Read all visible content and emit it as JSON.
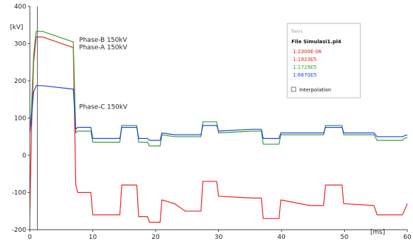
{
  "chart_data": {
    "type": "line",
    "title": "",
    "xlabel": "[ms]",
    "ylabel": "[kV]",
    "xlim": [
      0,
      60
    ],
    "ylim": [
      -200,
      400
    ],
    "x_ticks": [
      0,
      10,
      20,
      30,
      40,
      50,
      60
    ],
    "y_ticks": [
      -200,
      -100,
      0,
      100,
      200,
      300,
      400
    ],
    "grid": false,
    "legend_position": "top-right",
    "legend": {
      "header": "Basis",
      "file": "File Simulasi1.pl4",
      "entries": [
        "1:2300E-06",
        "1:1923E5",
        "1:1729E5",
        "1:6670E5"
      ],
      "interpolation_label": "Interpolation"
    },
    "annotations": [
      {
        "text": "Phase-B 150kV",
        "x": 7.5,
        "y": 305
      },
      {
        "text": "Phase-A 150kV",
        "x": 7.5,
        "y": 285
      },
      {
        "text": "Phase-C 150kV",
        "x": 7.5,
        "y": 125
      }
    ],
    "series": [
      {
        "color": "#ee2222",
        "points": [
          [
            0,
            -160
          ],
          [
            0.25,
            60
          ],
          [
            0.6,
            250
          ],
          [
            1.0,
            318
          ],
          [
            2.0,
            318
          ],
          [
            6.8,
            290
          ],
          [
            6.9,
            290
          ],
          [
            7.3,
            -80
          ],
          [
            7.6,
            -100
          ],
          [
            9.7,
            -100
          ],
          [
            10,
            -160
          ],
          [
            14.3,
            -160
          ],
          [
            14.6,
            -80
          ],
          [
            17,
            -80
          ],
          [
            17.3,
            -165
          ],
          [
            18.7,
            -165
          ],
          [
            19,
            -180
          ],
          [
            20.7,
            -180
          ],
          [
            21,
            -120
          ],
          [
            23,
            -130
          ],
          [
            24.7,
            -150
          ],
          [
            27.2,
            -150
          ],
          [
            27.5,
            -70
          ],
          [
            29.7,
            -70
          ],
          [
            30,
            -110
          ],
          [
            35.5,
            -115
          ],
          [
            36.8,
            -115
          ],
          [
            37.1,
            -170
          ],
          [
            39.6,
            -170
          ],
          [
            39.9,
            -120
          ],
          [
            44.5,
            -135
          ],
          [
            46.7,
            -135
          ],
          [
            47,
            -80
          ],
          [
            49.6,
            -80
          ],
          [
            49.9,
            -130
          ],
          [
            54.7,
            -135
          ],
          [
            55.2,
            -160
          ],
          [
            59.2,
            -160
          ],
          [
            59.5,
            -150
          ],
          [
            60,
            -130
          ]
        ]
      },
      {
        "color": "#33a033",
        "points": [
          [
            0,
            60
          ],
          [
            0.25,
            120
          ],
          [
            0.6,
            270
          ],
          [
            1.0,
            333
          ],
          [
            2.0,
            333
          ],
          [
            6.8,
            305
          ],
          [
            6.9,
            305
          ],
          [
            7.3,
            60
          ],
          [
            7.6,
            65
          ],
          [
            9.7,
            65
          ],
          [
            10,
            35
          ],
          [
            14.3,
            35
          ],
          [
            14.6,
            80
          ],
          [
            17,
            80
          ],
          [
            17.3,
            35
          ],
          [
            18.7,
            35
          ],
          [
            19,
            25
          ],
          [
            20.7,
            25
          ],
          [
            21,
            55
          ],
          [
            23,
            50
          ],
          [
            24.7,
            50
          ],
          [
            27.2,
            50
          ],
          [
            27.5,
            90
          ],
          [
            29.7,
            90
          ],
          [
            30,
            60
          ],
          [
            35.5,
            65
          ],
          [
            36.8,
            65
          ],
          [
            37.1,
            30
          ],
          [
            39.6,
            30
          ],
          [
            39.9,
            55
          ],
          [
            44.5,
            55
          ],
          [
            46.7,
            55
          ],
          [
            47,
            80
          ],
          [
            49.6,
            80
          ],
          [
            49.9,
            55
          ],
          [
            54.7,
            55
          ],
          [
            55.2,
            40
          ],
          [
            59.2,
            40
          ],
          [
            59.5,
            45
          ],
          [
            60,
            48
          ]
        ]
      },
      {
        "color": "#2244dd",
        "points": [
          [
            0,
            60
          ],
          [
            0.25,
            100
          ],
          [
            0.6,
            170
          ],
          [
            1.0,
            187
          ],
          [
            2.0,
            187
          ],
          [
            6.8,
            178
          ],
          [
            6.9,
            178
          ],
          [
            7.3,
            70
          ],
          [
            7.6,
            75
          ],
          [
            9.7,
            75
          ],
          [
            10,
            45
          ],
          [
            14.3,
            45
          ],
          [
            14.6,
            75
          ],
          [
            17,
            75
          ],
          [
            17.3,
            45
          ],
          [
            18.7,
            45
          ],
          [
            19,
            40
          ],
          [
            20.7,
            40
          ],
          [
            21,
            60
          ],
          [
            23,
            55
          ],
          [
            24.7,
            55
          ],
          [
            27.2,
            55
          ],
          [
            27.5,
            80
          ],
          [
            29.7,
            80
          ],
          [
            30,
            65
          ],
          [
            35.5,
            70
          ],
          [
            36.8,
            70
          ],
          [
            37.1,
            45
          ],
          [
            39.6,
            45
          ],
          [
            39.9,
            60
          ],
          [
            44.5,
            60
          ],
          [
            46.7,
            60
          ],
          [
            47,
            75
          ],
          [
            49.6,
            75
          ],
          [
            49.9,
            60
          ],
          [
            54.7,
            60
          ],
          [
            55.2,
            50
          ],
          [
            59.2,
            50
          ],
          [
            59.5,
            52
          ],
          [
            60,
            55
          ]
        ]
      }
    ]
  }
}
